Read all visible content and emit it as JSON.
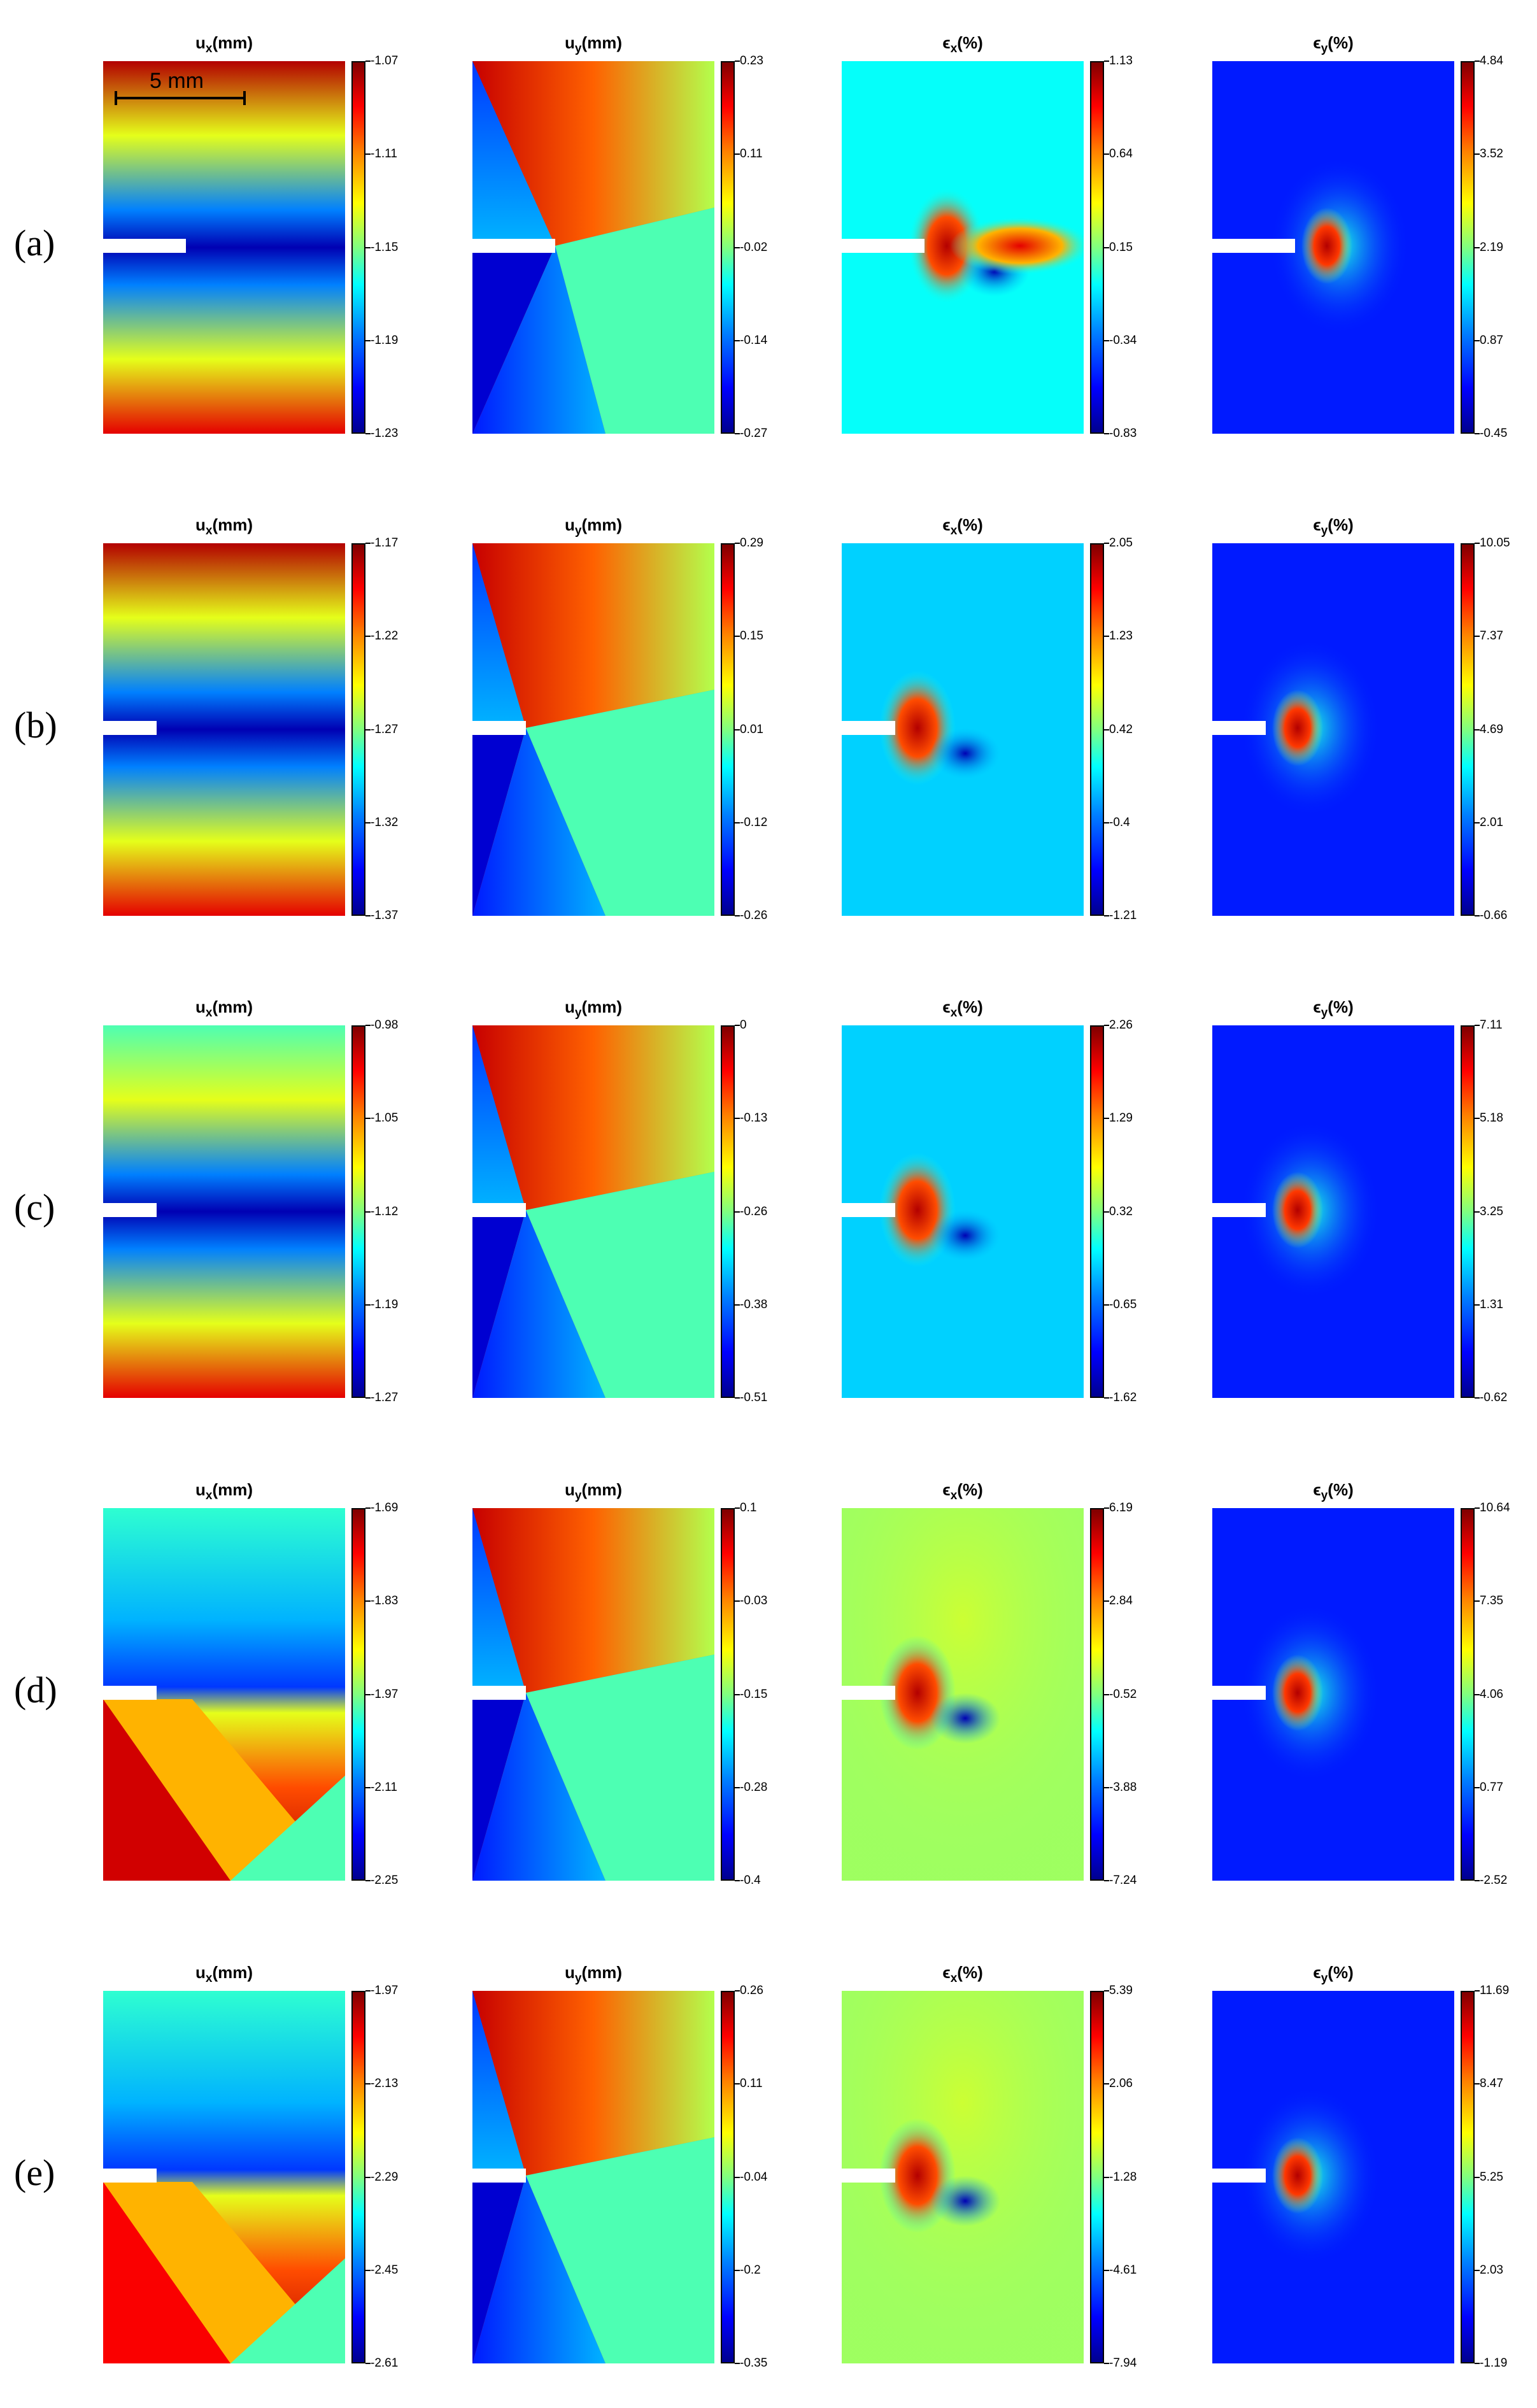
{
  "chart_data": {
    "type": "heatmap",
    "colormap": "jet",
    "scale_bar_label": "5 mm",
    "column_titles": [
      {
        "symbol": "u",
        "subscript": "x",
        "unit": "(mm)"
      },
      {
        "symbol": "u",
        "subscript": "y",
        "unit": "(mm)"
      },
      {
        "symbol": "ϵ",
        "subscript": "x",
        "unit": "(%)"
      },
      {
        "symbol": "ϵ",
        "subscript": "y",
        "unit": "(%)"
      }
    ],
    "rows": [
      {
        "label": "(a)",
        "colorbars": [
          [
            "-1.07",
            "-1.11",
            "-1.15",
            "-1.19",
            "-1.23"
          ],
          [
            "0.23",
            "0.11",
            "-0.02",
            "-0.14",
            "-0.27"
          ],
          [
            "1.13",
            "0.64",
            "0.15",
            "-0.34",
            "-0.83"
          ],
          [
            "4.84",
            "3.52",
            "2.19",
            "0.87",
            "-0.45"
          ]
        ]
      },
      {
        "label": "(b)",
        "colorbars": [
          [
            "-1.17",
            "-1.22",
            "-1.27",
            "-1.32",
            "-1.37"
          ],
          [
            "0.29",
            "0.15",
            "0.01",
            "-0.12",
            "-0.26"
          ],
          [
            "2.05",
            "1.23",
            "0.42",
            "-0.4",
            "-1.21"
          ],
          [
            "10.05",
            "7.37",
            "4.69",
            "2.01",
            "-0.66"
          ]
        ]
      },
      {
        "label": "(c)",
        "colorbars": [
          [
            "-0.98",
            "-1.05",
            "-1.12",
            "-1.19",
            "-1.27"
          ],
          [
            "0",
            "-0.13",
            "-0.26",
            "-0.38",
            "-0.51"
          ],
          [
            "2.26",
            "1.29",
            "0.32",
            "-0.65",
            "-1.62"
          ],
          [
            "7.11",
            "5.18",
            "3.25",
            "1.31",
            "-0.62"
          ]
        ]
      },
      {
        "label": "(d)",
        "colorbars": [
          [
            "-1.69",
            "-1.83",
            "-1.97",
            "-2.11",
            "-2.25"
          ],
          [
            "0.1",
            "-0.03",
            "-0.15",
            "-0.28",
            "-0.4"
          ],
          [
            "6.19",
            "2.84",
            "-0.52",
            "-3.88",
            "-7.24"
          ],
          [
            "10.64",
            "7.35",
            "4.06",
            "0.77",
            "-2.52"
          ]
        ]
      },
      {
        "label": "(e)",
        "colorbars": [
          [
            "-1.97",
            "-2.13",
            "-2.29",
            "-2.45",
            "-2.61"
          ],
          [
            "0.26",
            "0.11",
            "-0.04",
            "-0.2",
            "-0.35"
          ],
          [
            "5.39",
            "2.06",
            "-1.28",
            "-4.61",
            "-7.94"
          ],
          [
            "11.69",
            "8.47",
            "5.25",
            "2.03",
            "-1.19"
          ]
        ]
      }
    ]
  }
}
